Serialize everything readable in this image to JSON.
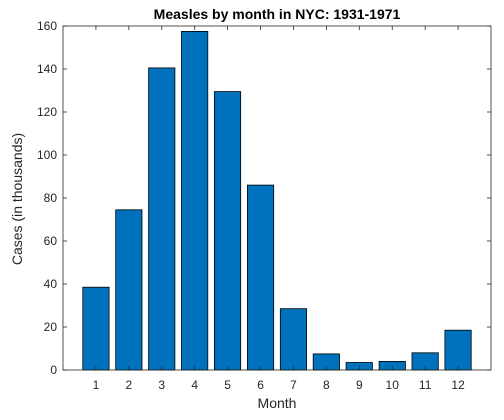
{
  "chart_data": {
    "type": "bar",
    "title": "Measles by month in NYC: 1931-1971",
    "xlabel": "Month",
    "ylabel": "Cases (in thousands)",
    "categories": [
      "1",
      "2",
      "3",
      "4",
      "5",
      "6",
      "7",
      "8",
      "9",
      "10",
      "11",
      "12"
    ],
    "values": [
      38.5,
      74.5,
      140.5,
      157.5,
      129.5,
      86,
      28.5,
      7.5,
      3.5,
      4,
      8,
      18.5
    ],
    "xlim": [
      0,
      13
    ],
    "ylim": [
      0,
      160
    ],
    "yticks": [
      0,
      20,
      40,
      60,
      80,
      100,
      120,
      140,
      160
    ],
    "bar_color": "#0072BD",
    "grid": false,
    "box": true
  }
}
